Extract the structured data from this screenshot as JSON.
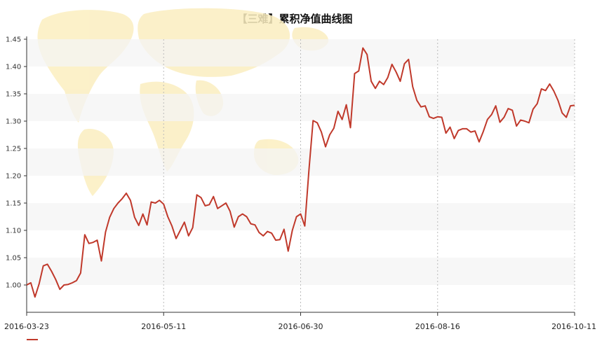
{
  "chart_data": {
    "type": "line",
    "title": "【三难】累积净值曲线图",
    "xlabel": "",
    "ylabel": "",
    "ylim": [
      0.95,
      1.45
    ],
    "yticks": [
      "1.00",
      "1.05",
      "1.10",
      "1.15",
      "1.20",
      "1.25",
      "1.30",
      "1.35",
      "1.40",
      "1.45"
    ],
    "xticks": [
      "2016-03-23",
      "2016-05-11",
      "2016-06-30",
      "2016-08-16",
      "2016-10-11"
    ],
    "grid": {
      "x": "dashed-vertical",
      "y": "alternating-bands"
    },
    "legend": "bottom-left",
    "colors": {
      "line": "#c0392b",
      "band": "#f4f4f4",
      "map": "#fbeec0"
    },
    "series": [
      {
        "values": [
          1.0,
          1.004,
          0.978,
          1.002,
          1.035,
          1.038,
          1.025,
          1.01,
          0.992,
          1.0,
          1.001,
          1.004,
          1.008,
          1.022,
          1.092,
          1.076,
          1.078,
          1.082,
          1.044,
          1.097,
          1.124,
          1.14,
          1.15,
          1.158,
          1.168,
          1.155,
          1.124,
          1.109,
          1.13,
          1.11,
          1.152,
          1.15,
          1.155,
          1.148,
          1.125,
          1.108,
          1.085,
          1.1,
          1.115,
          1.09,
          1.105,
          1.165,
          1.16,
          1.145,
          1.147,
          1.162,
          1.14,
          1.145,
          1.15,
          1.135,
          1.106,
          1.125,
          1.13,
          1.125,
          1.112,
          1.11,
          1.096,
          1.09,
          1.098,
          1.095,
          1.082,
          1.083,
          1.102,
          1.062,
          1.1,
          1.125,
          1.13,
          1.108,
          1.21,
          1.301,
          1.297,
          1.28,
          1.253,
          1.275,
          1.287,
          1.318,
          1.303,
          1.33,
          1.288,
          1.387,
          1.392,
          1.434,
          1.422,
          1.373,
          1.36,
          1.373,
          1.367,
          1.38,
          1.404,
          1.39,
          1.373,
          1.405,
          1.413,
          1.363,
          1.338,
          1.326,
          1.328,
          1.308,
          1.305,
          1.308,
          1.307,
          1.278,
          1.289,
          1.268,
          1.283,
          1.286,
          1.286,
          1.28,
          1.282,
          1.262,
          1.281,
          1.303,
          1.312,
          1.328,
          1.298,
          1.307,
          1.323,
          1.32,
          1.291,
          1.302,
          1.3,
          1.297,
          1.322,
          1.332,
          1.359,
          1.356,
          1.368,
          1.355,
          1.338,
          1.315,
          1.307,
          1.328,
          1.329
        ]
      }
    ]
  }
}
